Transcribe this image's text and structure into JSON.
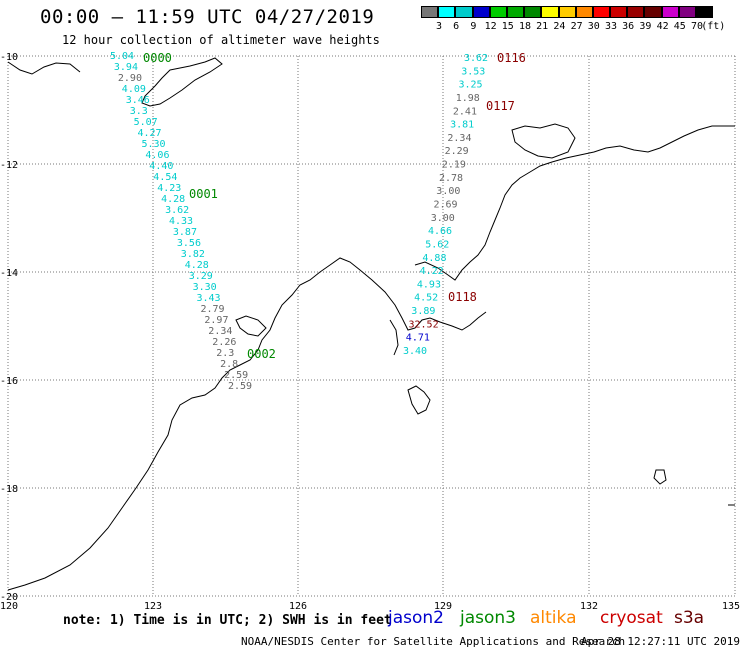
{
  "header": {
    "title": "00:00 – 11:59 UTC 04/27/2019",
    "subtitle": "12 hour collection of altimeter wave heights"
  },
  "scale": {
    "colors": [
      "#777777",
      "#00ffff",
      "#00cccc",
      "#0000cc",
      "#00cc00",
      "#00aa00",
      "#008800",
      "#ffff00",
      "#ffcc00",
      "#ff8800",
      "#ff0000",
      "#cc0000",
      "#990000",
      "#660000",
      "#cc00cc",
      "#800080",
      "#000000"
    ],
    "labels": [
      "3",
      "6",
      "9",
      "12",
      "15",
      "18",
      "21",
      "24",
      "27",
      "30",
      "33",
      "36",
      "39",
      "42",
      "45",
      "70"
    ],
    "unit": "(ft)"
  },
  "axes": {
    "lat_labels": [
      "-10",
      "-12",
      "-14",
      "-16",
      "-18",
      "-20"
    ],
    "lon_labels": [
      "120",
      "123",
      "126",
      "129",
      "132",
      "135"
    ]
  },
  "tracks": {
    "track_a_values": [
      "5.04",
      "3.94",
      "2.90",
      "4.09",
      "3.46",
      "3.3",
      "5.07",
      "4.27",
      "5.30",
      "4.06",
      "4.40",
      "4.54",
      "4.23",
      "4.28",
      "3.62",
      "4.33",
      "3.87",
      "3.56",
      "3.82",
      "4.28",
      "3.29",
      "3.30",
      "3.43",
      "2.79",
      "2.97",
      "2.34",
      "2.26",
      "2.3",
      "2.8",
      "2.59",
      "2.59"
    ],
    "track_a_colors": [
      "cyan",
      "cyan",
      "gray",
      "cyan",
      "cyan",
      "cyan",
      "cyan",
      "cyan",
      "cyan",
      "cyan",
      "cyan",
      "cyan",
      "cyan",
      "cyan",
      "cyan",
      "cyan",
      "cyan",
      "cyan",
      "cyan",
      "cyan",
      "cyan",
      "cyan",
      "cyan",
      "gray",
      "gray",
      "gray",
      "gray",
      "gray",
      "gray",
      "gray",
      "gray"
    ],
    "track_b_values": [
      "3.62",
      "3.53",
      "3.25",
      "1.98",
      "2.41",
      "3.81",
      "2.34",
      "2.29",
      "2.19",
      "2.78",
      "3.00",
      "2.69",
      "3.00",
      "4.66",
      "5.62",
      "4.88",
      "4.22",
      "4.93",
      "4.52",
      "3.89",
      "32.52",
      "4.71",
      "3.40"
    ],
    "track_b_colors": [
      "cyan",
      "cyan",
      "cyan",
      "gray",
      "gray",
      "cyan",
      "gray",
      "gray",
      "gray",
      "gray",
      "gray",
      "gray",
      "gray",
      "cyan",
      "cyan",
      "cyan",
      "cyan",
      "cyan",
      "cyan",
      "cyan",
      "darkred",
      "blue",
      "cyan"
    ]
  },
  "time_labels": [
    {
      "text": "0000",
      "color": "#008800"
    },
    {
      "text": "0001",
      "color": "#008800"
    },
    {
      "text": "0002",
      "color": "#008800"
    },
    {
      "text": "0116",
      "color": "#8b0000"
    },
    {
      "text": "0117",
      "color": "#8b0000"
    },
    {
      "text": "0118",
      "color": "#8b0000"
    }
  ],
  "footer": {
    "note": "note: 1) Time is in UTC; 2) SWH is in feet",
    "satellites": [
      {
        "name": "jason2",
        "color": "#0000cc"
      },
      {
        "name": "jason3",
        "color": "#008800"
      },
      {
        "name": "altika",
        "color": "#ff8800"
      },
      {
        "name": "cryosat",
        "color": "#cc0000"
      },
      {
        "name": "s3a",
        "color": "#660000"
      }
    ],
    "credit": "NOAA/NESDIS Center for Satellite Applications and Research",
    "generated": "Apr 28 12:27:11 UTC 2019"
  }
}
